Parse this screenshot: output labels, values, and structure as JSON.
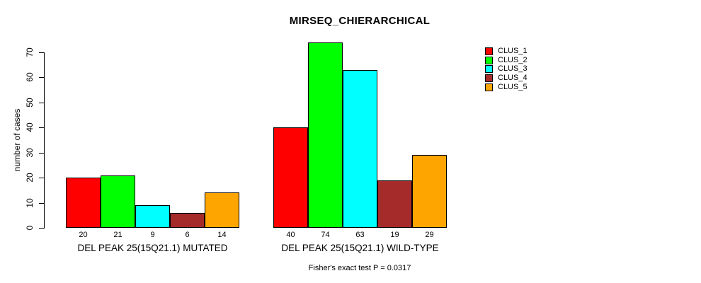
{
  "chart_data": {
    "type": "bar",
    "title": "MIRSEQ_CHIERARCHICAL",
    "ylabel": "number of cases",
    "xlabel": "",
    "ylim": [
      0,
      70
    ],
    "yticks": [
      0,
      10,
      20,
      30,
      40,
      50,
      60,
      70
    ],
    "grid": false,
    "legend_position": "top-right",
    "bar_value_labels": true,
    "categories": [
      "DEL PEAK 25(15Q21.1) MUTATED",
      "DEL PEAK 25(15Q21.1) WILD-TYPE"
    ],
    "series": [
      {
        "name": "CLUS_1",
        "color": "#ff0000",
        "values": [
          20,
          40
        ]
      },
      {
        "name": "CLUS_2",
        "color": "#00ff00",
        "values": [
          21,
          74
        ]
      },
      {
        "name": "CLUS_3",
        "color": "#00ffff",
        "values": [
          9,
          63
        ]
      },
      {
        "name": "CLUS_4",
        "color": "#a52a2a",
        "values": [
          6,
          19
        ]
      },
      {
        "name": "CLUS_5",
        "color": "#ffa500",
        "values": [
          14,
          29
        ]
      }
    ],
    "annotation": "Fisher's exact test P = 0.0317"
  }
}
